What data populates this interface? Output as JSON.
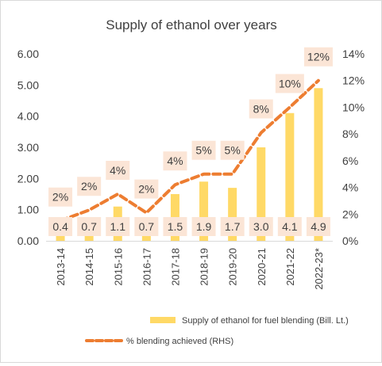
{
  "chart_data": {
    "type": "bar",
    "title": "Supply of ethanol over years",
    "xlabel": "",
    "ylabel": "",
    "categories": [
      "2013-14",
      "2014-15",
      "2015-16",
      "2016-17",
      "2017-18",
      "2018-19",
      "2019-20",
      "2020-21",
      "2021-22",
      "2022-23*"
    ],
    "series": [
      {
        "name": "Supply of ethanol for fuel blending (Bill. Lt.)",
        "type": "bar",
        "axis": "left",
        "values": [
          0.4,
          0.7,
          1.1,
          0.7,
          1.5,
          1.9,
          1.7,
          3.0,
          4.1,
          4.9
        ],
        "labels": [
          "0.4",
          "0.7",
          "1.1",
          "0.7",
          "1.5",
          "1.9",
          "1.7",
          "3.0",
          "4.1",
          "4.9"
        ],
        "color": "#ffd966"
      },
      {
        "name": "% blending achieved (RHS)",
        "type": "line",
        "style": "dashed",
        "axis": "right",
        "values": [
          1.5,
          2.3,
          3.5,
          2.1,
          4.2,
          5.0,
          5.0,
          8.1,
          10.0,
          12.0
        ],
        "labels": [
          "2%",
          "2%",
          "4%",
          "2%",
          "4%",
          "5%",
          "5%",
          "8%",
          "10%",
          "12%"
        ],
        "color": "#ed7d31"
      }
    ],
    "ylim": [
      0,
      6
    ],
    "yticks": [
      "0.00",
      "1.00",
      "2.00",
      "3.00",
      "4.00",
      "5.00",
      "6.00"
    ],
    "y2lim": [
      0,
      14
    ],
    "y2ticks": [
      "0%",
      "2%",
      "4%",
      "6%",
      "8%",
      "10%",
      "12%",
      "14%"
    ],
    "grid": false,
    "legend_position": "bottom",
    "label_fill": "#fbe5d6"
  }
}
